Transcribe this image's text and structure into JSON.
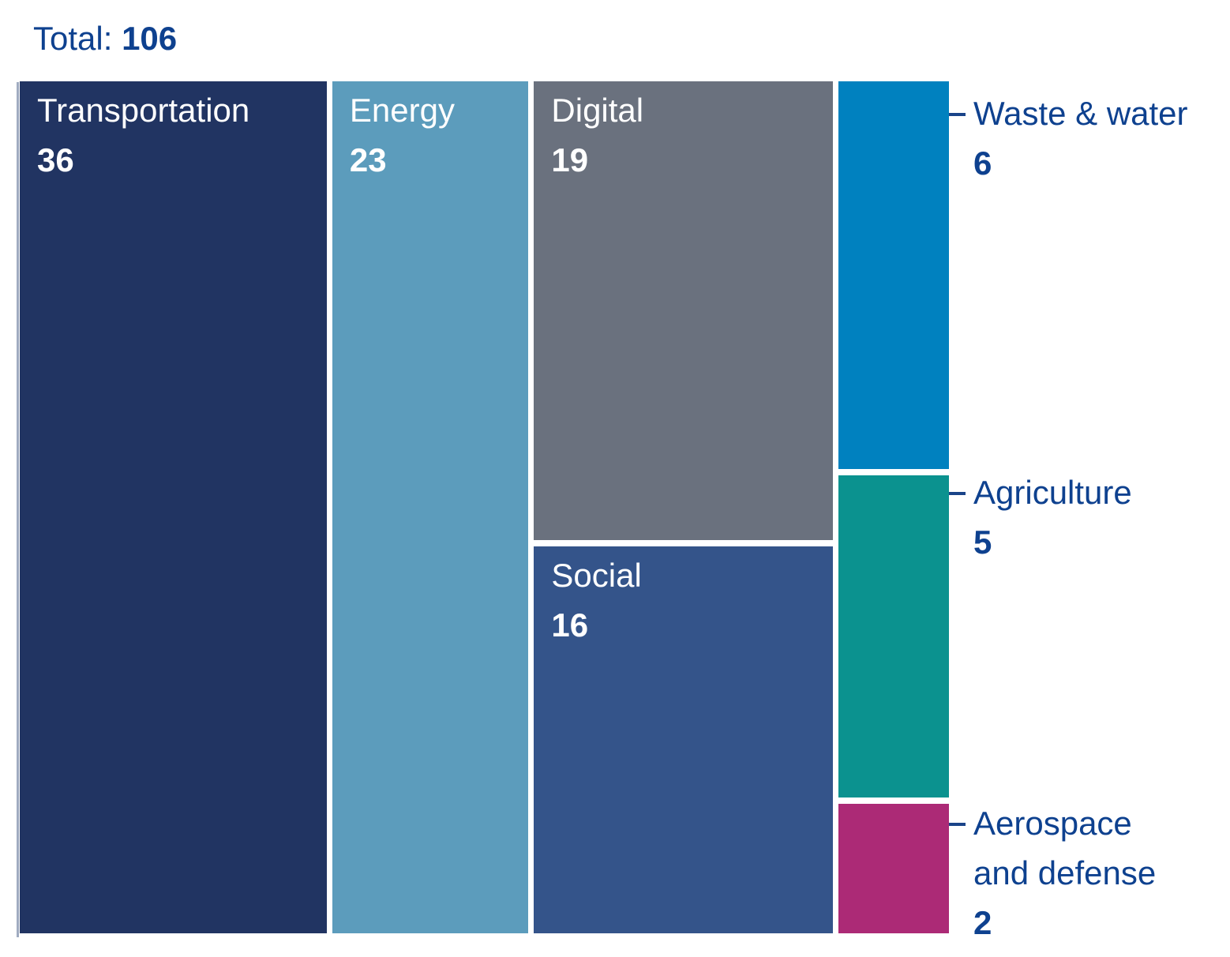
{
  "chart_data": {
    "type": "treemap",
    "title": "Total: 106",
    "total_label": "Total:",
    "total_value": "106",
    "legend_position": "none",
    "text_color": "#0e418f",
    "axis_line_color": "#9fabc0",
    "leader_line_color": "#1a4489",
    "block_text_color": "#ffffff",
    "items": [
      {
        "label": "Transportation",
        "value": 36,
        "color": "#213462",
        "label_position": "inside"
      },
      {
        "label": "Energy",
        "value": 23,
        "color": "#5c9cbc",
        "label_position": "inside"
      },
      {
        "label": "Digital",
        "value": 19,
        "color": "#6a717e",
        "label_position": "inside"
      },
      {
        "label": "Social",
        "value": 16,
        "color": "#34548a",
        "label_position": "inside"
      },
      {
        "label": "Waste & water",
        "value": 6,
        "color": "#0081bf",
        "label_position": "outside"
      },
      {
        "label": "Agriculture",
        "value": 5,
        "color": "#0b928f",
        "label_position": "outside"
      },
      {
        "label": "Aerospace and defense",
        "value": 2,
        "color": "#ac2a76",
        "label_position": "outside"
      }
    ],
    "columns": [
      [
        0
      ],
      [
        1
      ],
      [
        2,
        3
      ],
      [
        4,
        5,
        6
      ]
    ]
  }
}
